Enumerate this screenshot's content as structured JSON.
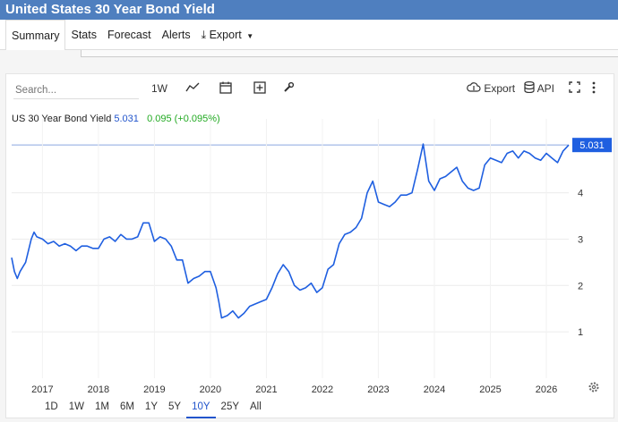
{
  "header": {
    "title": "United States 30 Year Bond Yield"
  },
  "tabs": [
    {
      "label": "Summary"
    },
    {
      "label": "Stats"
    },
    {
      "label": "Forecast"
    },
    {
      "label": "Alerts"
    },
    {
      "label": "Export"
    }
  ],
  "toolbar": {
    "search_placeholder": "Search...",
    "interval": "1W",
    "export_label": "Export",
    "api_label": "API"
  },
  "series_label": {
    "name": "US 30 Year Bond Yield",
    "value": "5.031",
    "change": "0.095 (+0.095%)"
  },
  "last_value_badge": "5.031",
  "ranges": [
    {
      "label": "1D",
      "active": false
    },
    {
      "label": "1W",
      "active": false
    },
    {
      "label": "1M",
      "active": false
    },
    {
      "label": "6M",
      "active": false
    },
    {
      "label": "1Y",
      "active": false
    },
    {
      "label": "5Y",
      "active": false
    },
    {
      "label": "10Y",
      "active": true
    },
    {
      "label": "25Y",
      "active": false
    },
    {
      "label": "All",
      "active": false
    }
  ],
  "colors": {
    "line": "#1f5fe0",
    "badge": "#1f5fe0",
    "title_bar": "#4f7fbf"
  },
  "chart_data": {
    "type": "line",
    "x_ticks": [
      "2017",
      "2018",
      "2019",
      "2020",
      "2021",
      "2022",
      "2023",
      "2024",
      "2025",
      "2026"
    ],
    "y_ticks": [
      1,
      2,
      3,
      4
    ],
    "ylim": [
      0,
      5.4
    ],
    "xlim": [
      2016.45,
      2026.4
    ],
    "grid": true,
    "series": [
      {
        "x": [
          2016.45,
          2016.5,
          2016.55,
          2016.6,
          2016.7,
          2016.8,
          2016.85,
          2016.9,
          2017.0,
          2017.1,
          2017.2,
          2017.3,
          2017.4,
          2017.5,
          2017.6,
          2017.7,
          2017.8,
          2017.9,
          2018.0,
          2018.1,
          2018.2,
          2018.3,
          2018.4,
          2018.5,
          2018.6,
          2018.7,
          2018.8,
          2018.9,
          2019.0,
          2019.1,
          2019.2,
          2019.3,
          2019.4,
          2019.5,
          2019.6,
          2019.7,
          2019.8,
          2019.9,
          2020.0,
          2020.1,
          2020.15,
          2020.2,
          2020.3,
          2020.4,
          2020.5,
          2020.6,
          2020.7,
          2020.8,
          2020.9,
          2021.0,
          2021.1,
          2021.2,
          2021.3,
          2021.4,
          2021.5,
          2021.6,
          2021.7,
          2021.8,
          2021.9,
          2022.0,
          2022.1,
          2022.2,
          2022.3,
          2022.4,
          2022.5,
          2022.6,
          2022.7,
          2022.8,
          2022.9,
          2023.0,
          2023.1,
          2023.2,
          2023.3,
          2023.4,
          2023.5,
          2023.6,
          2023.7,
          2023.8,
          2023.9,
          2024.0,
          2024.1,
          2024.2,
          2024.3,
          2024.4,
          2024.5,
          2024.6,
          2024.7,
          2024.8,
          2024.9,
          2025.0,
          2025.1,
          2025.2,
          2025.3,
          2025.4,
          2025.5,
          2025.6,
          2025.7,
          2025.8,
          2025.9,
          2026.0,
          2026.1,
          2026.2,
          2026.3,
          2026.4
        ],
        "y": [
          2.6,
          2.3,
          2.15,
          2.3,
          2.5,
          3.0,
          3.15,
          3.05,
          3.0,
          2.9,
          2.95,
          2.85,
          2.9,
          2.85,
          2.75,
          2.85,
          2.85,
          2.8,
          2.8,
          3.0,
          3.05,
          2.95,
          3.1,
          3.0,
          3.0,
          3.05,
          3.35,
          3.35,
          2.95,
          3.05,
          3.0,
          2.85,
          2.55,
          2.55,
          2.05,
          2.15,
          2.2,
          2.3,
          2.3,
          1.95,
          1.65,
          1.3,
          1.35,
          1.45,
          1.3,
          1.4,
          1.55,
          1.6,
          1.65,
          1.7,
          1.95,
          2.25,
          2.45,
          2.3,
          2.0,
          1.9,
          1.95,
          2.05,
          1.85,
          1.95,
          2.35,
          2.45,
          2.9,
          3.1,
          3.15,
          3.25,
          3.45,
          4.0,
          4.25,
          3.8,
          3.75,
          3.7,
          3.8,
          3.95,
          3.95,
          4.0,
          4.5,
          5.05,
          4.25,
          4.05,
          4.3,
          4.35,
          4.45,
          4.55,
          4.25,
          4.1,
          4.05,
          4.1,
          4.6,
          4.75,
          4.7,
          4.65,
          4.85,
          4.9,
          4.75,
          4.9,
          4.85,
          4.75,
          4.7,
          4.85,
          4.75,
          4.65,
          4.9,
          5.03
        ]
      }
    ]
  }
}
